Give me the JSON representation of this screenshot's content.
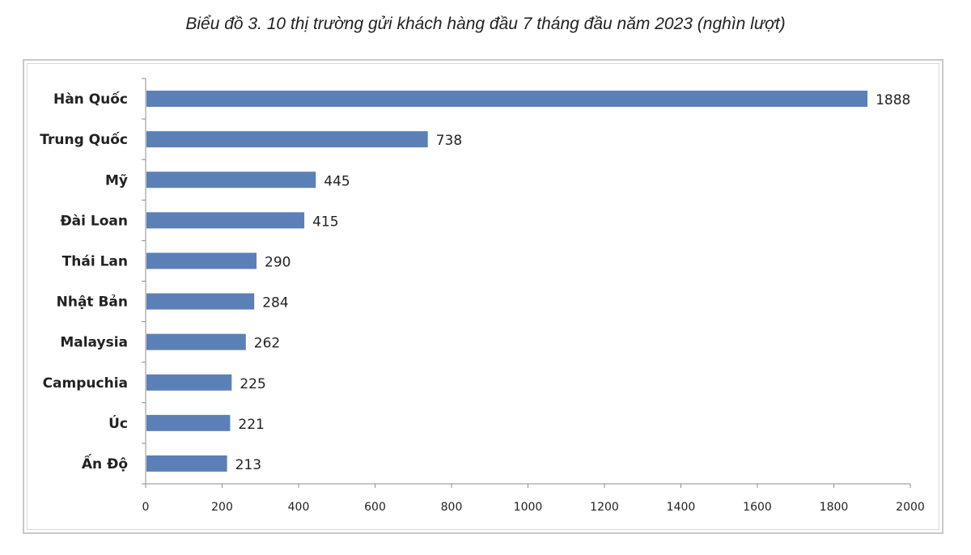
{
  "title": "Biểu đồ 3. 10 thị trường gửi khách hàng đầu 7 tháng đầu năm 2023 (nghìn lượt)",
  "chart_data": {
    "type": "bar",
    "orientation": "horizontal",
    "title": "Biểu đồ 3. 10 thị trường gửi khách hàng đầu 7 tháng đầu năm 2023 (nghìn lượt)",
    "categories": [
      "Hàn Quốc",
      "Trung Quốc",
      "Mỹ",
      "Đài Loan",
      "Thái Lan",
      "Nhật Bản",
      "Malaysia",
      "Campuchia",
      "Úc",
      "Ấn Độ"
    ],
    "values": [
      1888,
      738,
      445,
      415,
      290,
      284,
      262,
      225,
      221,
      213
    ],
    "x_ticks": [
      "0",
      "200",
      "400",
      "600",
      "800",
      "1000",
      "1200",
      "1400",
      "1600",
      "1800",
      "2000"
    ],
    "xlim": [
      0,
      2000
    ],
    "grid": false,
    "legend": "none",
    "colors": {
      "bar": "#5b80b8",
      "axis": "#8c8c8c"
    }
  }
}
